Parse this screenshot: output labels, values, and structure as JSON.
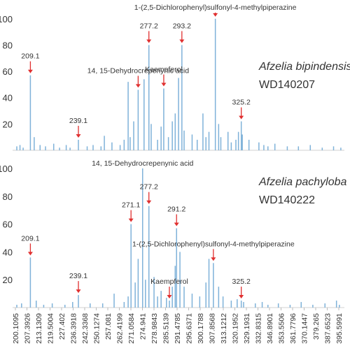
{
  "chart_data": [
    {
      "type": "bar",
      "title": "Afzelia bipindensis",
      "subtitle": "WD140207",
      "color": "#7fb2d9",
      "ylim": [
        0,
        110
      ],
      "yticks": [
        20,
        40,
        60,
        80,
        100
      ],
      "xticks": [
        200.1095,
        207.3926,
        213.1309,
        219.5004,
        227.402,
        236.3918,
        242.3368,
        250.1274,
        257.081,
        262.4199,
        271.0584,
        274.941,
        278.9843,
        285.5139,
        291.4785,
        295.6371,
        300.1788,
        307.8568,
        313.1212,
        320.1952,
        329.1931,
        332.8315,
        346.8901,
        353.5506,
        361.7796,
        370.1447,
        379.265,
        387.6523,
        395.5991
      ],
      "x": [
        201,
        203,
        205,
        209.1,
        211,
        214,
        217,
        222,
        226,
        231,
        234,
        239.1,
        244,
        248,
        253,
        255,
        259,
        263,
        266,
        269,
        270.5,
        272,
        273.5,
        275.5,
        277.2,
        278,
        281,
        283,
        284.5,
        287,
        289,
        290.5,
        292,
        293.2,
        294,
        297,
        299,
        302,
        304,
        306,
        309.5,
        311,
        312,
        316,
        318,
        321,
        323,
        325.2,
        326,
        330,
        334,
        340,
        345,
        350,
        358,
        366,
        375,
        384,
        392,
        397
      ],
      "values": [
        3,
        4,
        2,
        57,
        10,
        4,
        3,
        5,
        2,
        4,
        2,
        8,
        3,
        4,
        3,
        11,
        6,
        4,
        8,
        52,
        10,
        22,
        46,
        54,
        80,
        20,
        8,
        18,
        47,
        10,
        22,
        28,
        55,
        80,
        15,
        12,
        8,
        28,
        10,
        14,
        100,
        20,
        10,
        14,
        6,
        8,
        14,
        22,
        12,
        8,
        6,
        4,
        3,
        5,
        3,
        3,
        4,
        2,
        3,
        2
      ],
      "annotations": [
        {
          "label": "209.1",
          "x": 209.1,
          "y": 57
        },
        {
          "label": "239.1",
          "x": 239.1,
          "y": 8
        },
        {
          "label": "14, 15-Dehydrocrepenynic acid",
          "x": 273.5,
          "y": 46
        },
        {
          "label": "277.2",
          "x": 277.2,
          "y": 80
        },
        {
          "label": "Kaempferol",
          "x": 284.5,
          "y": 47
        },
        {
          "label": "293.2",
          "x": 293.2,
          "y": 80
        },
        {
          "label": "1-(2,5-Dichlorophenyl)sulfonyl-4-methylpiperazine",
          "x": 309.5,
          "y": 100
        },
        {
          "label": "325.2",
          "x": 325.2,
          "y": 22
        }
      ]
    },
    {
      "type": "bar",
      "title": "Afzelia pachyloba",
      "subtitle": "WD140222",
      "color": "#7fb2d9",
      "ylim": [
        0,
        105
      ],
      "yticks": [
        20,
        40,
        60,
        80,
        100
      ],
      "xticks": [
        200.1095,
        207.3926,
        213.1309,
        219.5004,
        227.402,
        236.3918,
        242.3368,
        250.1274,
        257.081,
        262.4199,
        271.0584,
        274.941,
        278.9843,
        285.5139,
        291.4785,
        295.6371,
        300.1788,
        307.8568,
        313.1212,
        320.1952,
        329.1931,
        332.8315,
        346.8901,
        353.5506,
        361.7796,
        370.1447,
        379.265,
        387.6523,
        395.5991
      ],
      "x": [
        201,
        204,
        209.1,
        212,
        216,
        221,
        230,
        236,
        239.1,
        246,
        254,
        260,
        266,
        269,
        271.1,
        272.5,
        273.5,
        275.0,
        276,
        277.2,
        279,
        281,
        283,
        286,
        287.5,
        289,
        290.5,
        291.2,
        292.5,
        294,
        297,
        300,
        304,
        306,
        308.6,
        311,
        313,
        318,
        322,
        325.2,
        327,
        332,
        338,
        345,
        352,
        360,
        368,
        377,
        386,
        394,
        396
      ],
      "values": [
        2,
        3,
        36,
        5,
        2,
        3,
        2,
        4,
        9,
        3,
        3,
        10,
        4,
        8,
        60,
        18,
        35,
        100,
        20,
        73,
        22,
        8,
        12,
        7,
        5,
        15,
        30,
        57,
        40,
        15,
        10,
        8,
        18,
        35,
        32,
        15,
        8,
        5,
        6,
        5,
        4,
        3,
        4,
        2,
        3,
        2,
        4,
        2,
        3,
        5,
        2
      ],
      "annotations": [
        {
          "label": "209.1",
          "x": 209.1,
          "y": 36
        },
        {
          "label": "239.1",
          "x": 239.1,
          "y": 9
        },
        {
          "label": "271.1",
          "x": 271.1,
          "y": 60
        },
        {
          "label": "14, 15-Dehydrocrepenynic acid",
          "x": 275.0,
          "y": 100
        },
        {
          "label": "277.2",
          "x": 277.2,
          "y": 73
        },
        {
          "label": "Kaempferol",
          "x": 287.5,
          "y": 5
        },
        {
          "label": "291.2",
          "x": 291.2,
          "y": 57
        },
        {
          "label": "1-(2,5-Dichlorophenyl)sulfonyl-4-methylpiperazine",
          "x": 308.6,
          "y": 32
        },
        {
          "label": "325.2",
          "x": 325.2,
          "y": 5
        }
      ]
    }
  ]
}
